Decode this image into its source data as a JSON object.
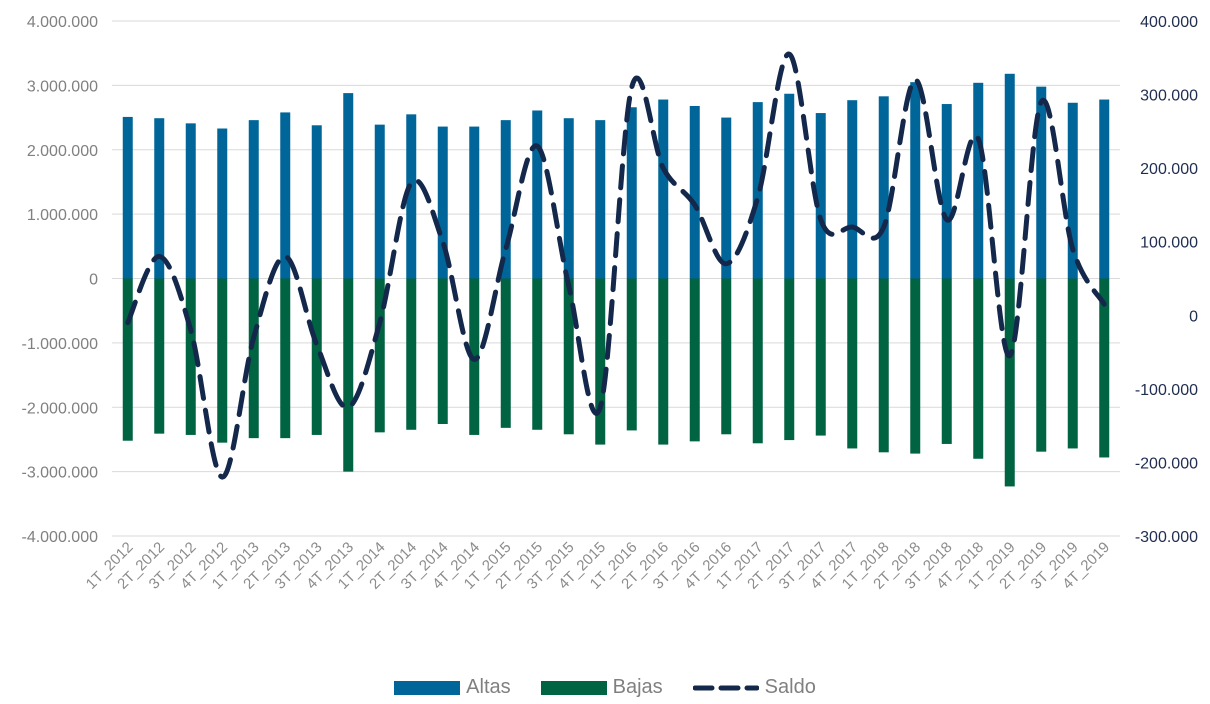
{
  "chart_data": {
    "type": "bar",
    "categories": [
      "1T_2012",
      "2T_2012",
      "3T_2012",
      "4T_2012",
      "1T_2013",
      "2T_2013",
      "3T_2013",
      "4T_2013",
      "1T_2014",
      "2T_2014",
      "3T_2014",
      "4T_2014",
      "1T_2015",
      "2T_2015",
      "3T_2015",
      "4T_2015",
      "1T_2016",
      "2T_2016",
      "3T_2016",
      "4T_2016",
      "1T_2017",
      "2T_2017",
      "3T_2017",
      "4T_2017",
      "1T_2018",
      "2T_2018",
      "3T_2018",
      "4T_2018",
      "1T_2019",
      "2T_2019",
      "3T_2019",
      "4T_2019"
    ],
    "series": [
      {
        "name": "Altas",
        "type": "bar",
        "axis": "left",
        "color": "#006699",
        "values": [
          2510000,
          2490000,
          2410000,
          2330000,
          2460000,
          2580000,
          2380000,
          2880000,
          2390000,
          2550000,
          2360000,
          2360000,
          2460000,
          2610000,
          2490000,
          2460000,
          2660000,
          2780000,
          2680000,
          2500000,
          2740000,
          2870000,
          2570000,
          2770000,
          2830000,
          3050000,
          2710000,
          3040000,
          3180000,
          2980000,
          2730000,
          2780000
        ]
      },
      {
        "name": "Bajas",
        "type": "bar",
        "axis": "left",
        "color": "#006341",
        "values": [
          -2520000,
          -2410000,
          -2430000,
          -2550000,
          -2480000,
          -2480000,
          -2430000,
          -3000000,
          -2390000,
          -2350000,
          -2260000,
          -2430000,
          -2320000,
          -2350000,
          -2420000,
          -2580000,
          -2360000,
          -2580000,
          -2530000,
          -2420000,
          -2560000,
          -2510000,
          -2440000,
          -2640000,
          -2700000,
          -2720000,
          -2570000,
          -2800000,
          -3230000,
          -2690000,
          -2640000,
          -2780000
        ]
      },
      {
        "name": "Saldo",
        "type": "line",
        "axis": "right",
        "color": "#14284b",
        "dashed": true,
        "values": [
          -10000,
          80000,
          -20000,
          -220000,
          -30000,
          80000,
          -40000,
          -125000,
          -10000,
          180000,
          100000,
          -60000,
          90000,
          230000,
          40000,
          -125000,
          310000,
          200000,
          150000,
          70000,
          160000,
          355000,
          130000,
          120000,
          120000,
          320000,
          130000,
          240000,
          -55000,
          290000,
          90000,
          15000
        ]
      }
    ],
    "yleft": {
      "min": -4000000,
      "max": 4000000,
      "step": 1000000,
      "ticks": [
        "4.000.000",
        "3.000.000",
        "2.000.000",
        "1.000.000",
        "0",
        "-1.000.000",
        "-2.000.000",
        "-3.000.000",
        "-4.000.000"
      ]
    },
    "yright": {
      "min": -300000,
      "max": 400000,
      "step": 100000,
      "ticks": [
        "400.000",
        "300.000",
        "200.000",
        "100.000",
        "0",
        "-100.000",
        "-200.000",
        "-300.000"
      ]
    },
    "grid": true,
    "legend_position": "bottom"
  },
  "legend": {
    "altas": "Altas",
    "bajas": "Bajas",
    "saldo": "Saldo"
  }
}
